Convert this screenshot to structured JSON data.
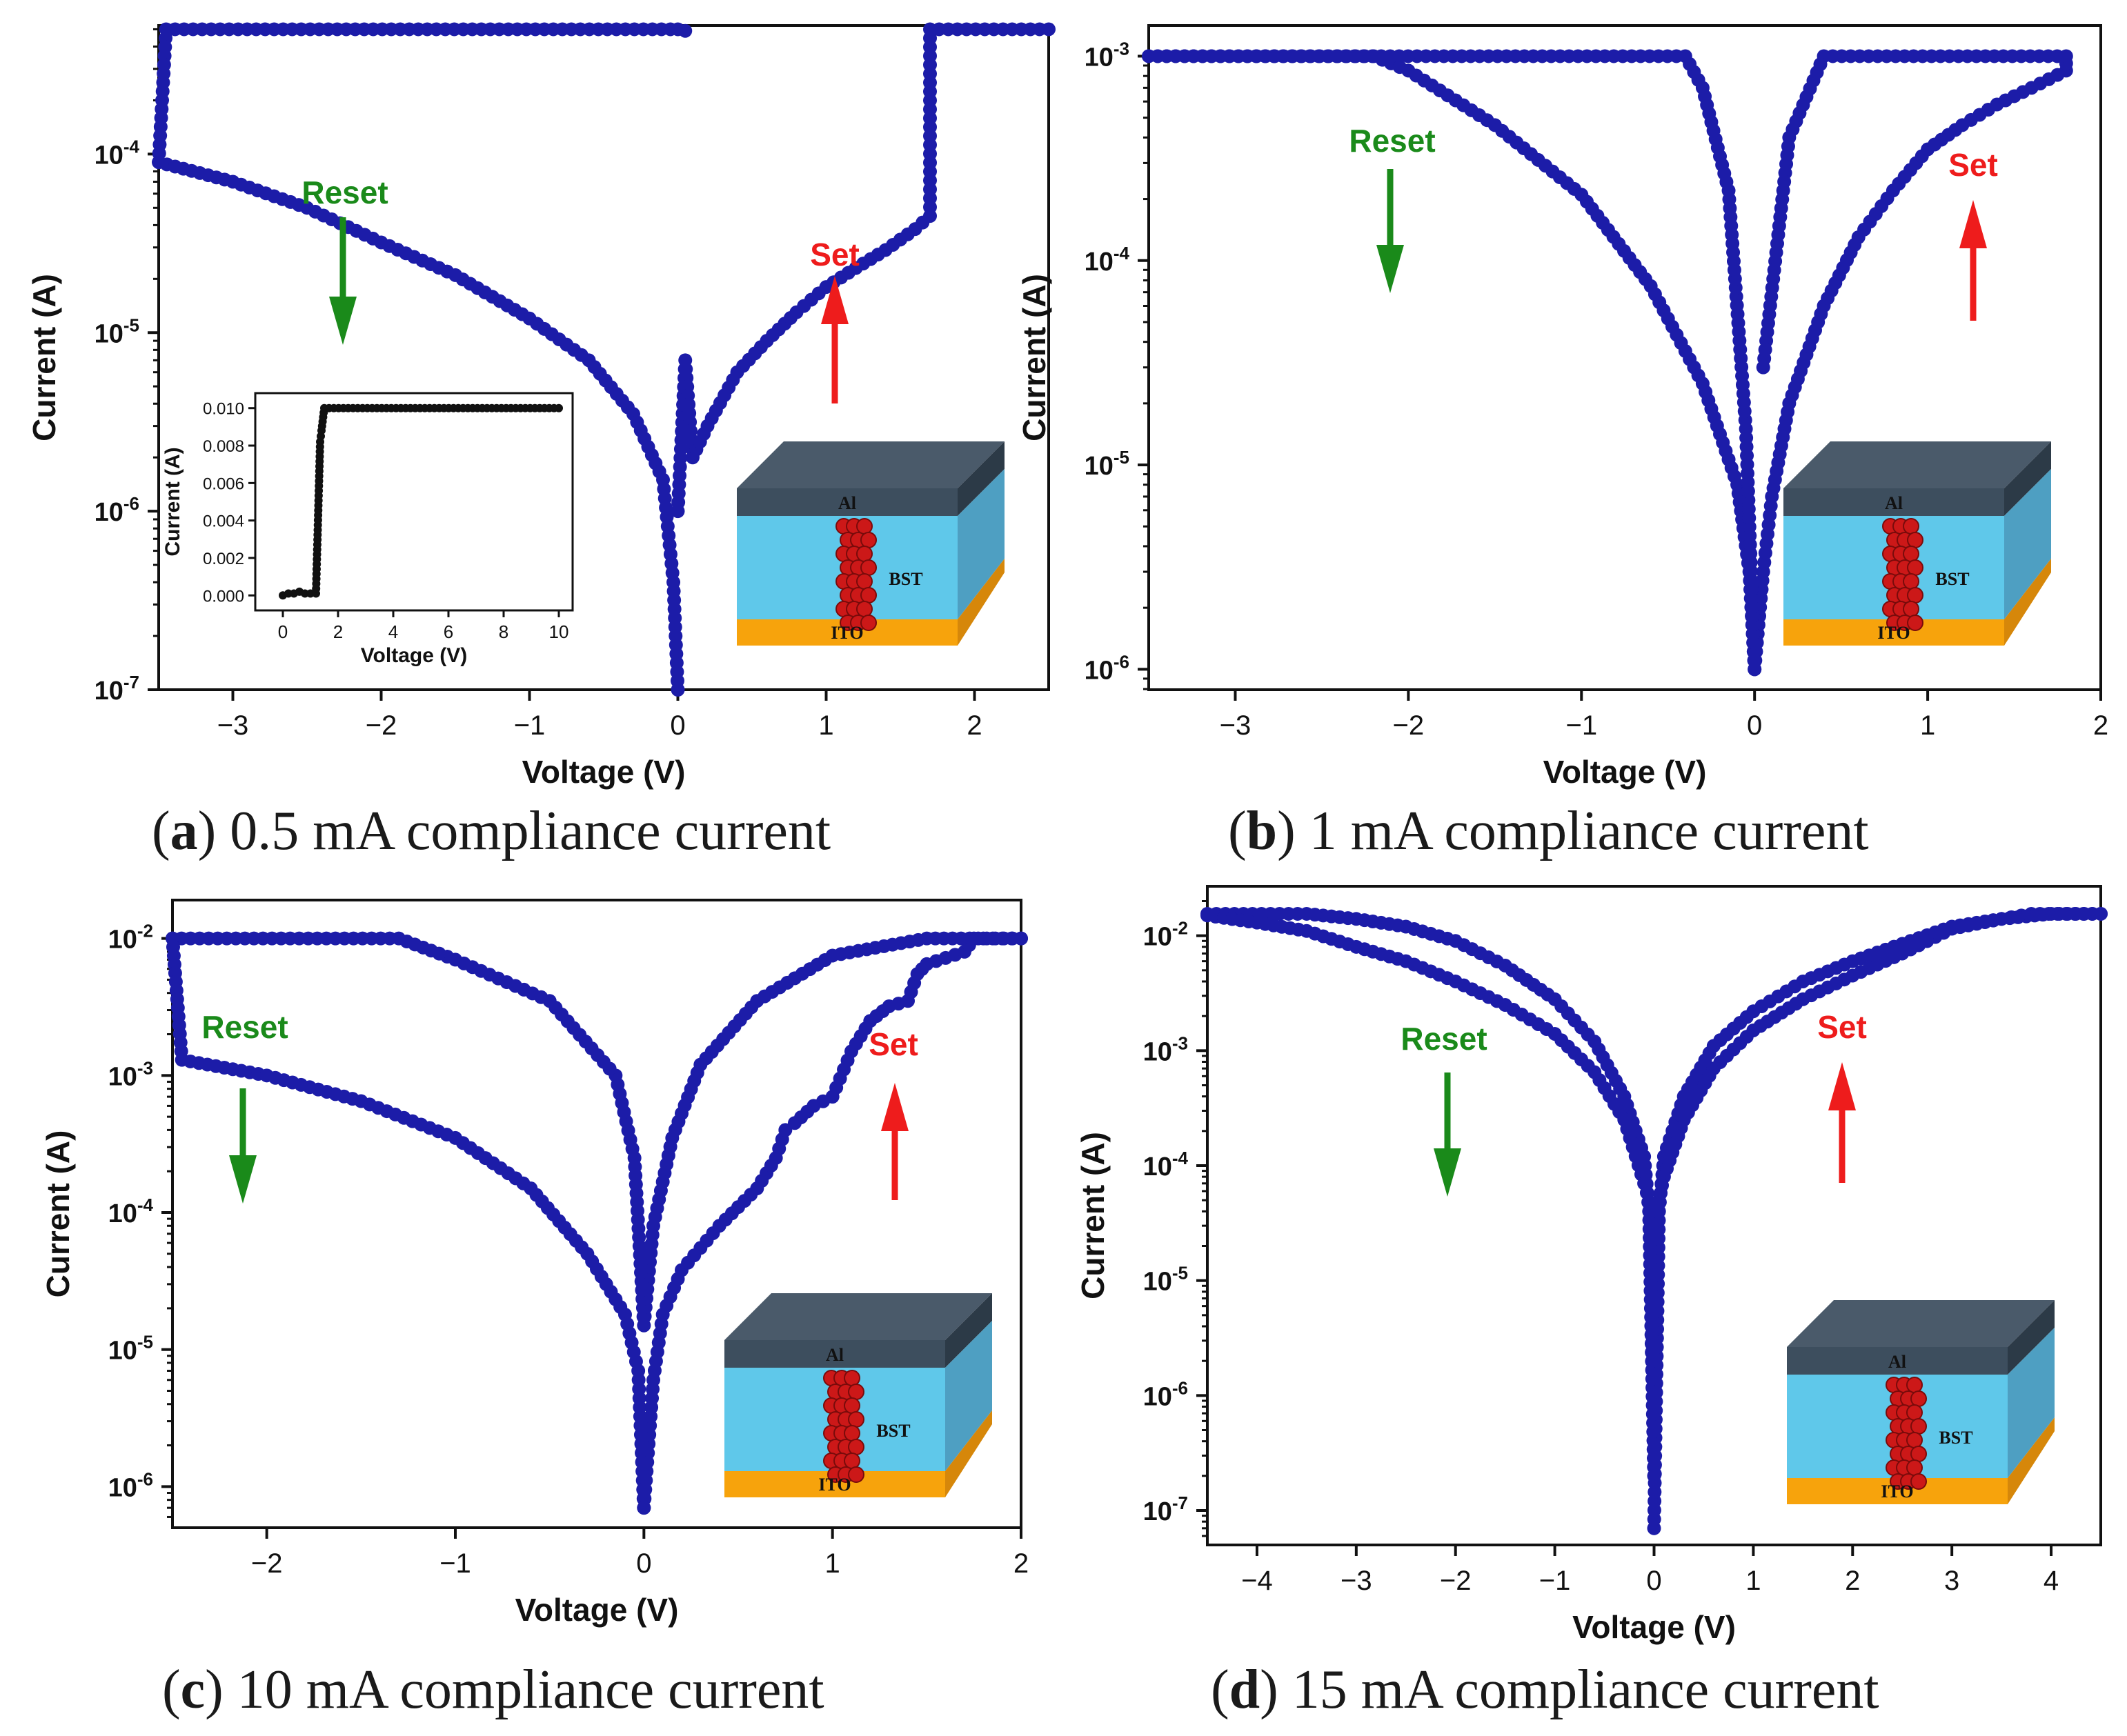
{
  "figure": {
    "point_color": "#1c1ca8",
    "line_color": "#2a2ab8",
    "reset_color": "#1a8a1a",
    "set_color": "#ee1c1c",
    "device_labels": {
      "top": "Al",
      "middle": "BST",
      "bottom": "ITO"
    },
    "device_colors": {
      "al": "#4a5a6a",
      "bst": "#5fc8ea",
      "ito": "#f7a30c",
      "filament": "#cc1818"
    }
  },
  "chart_data": [
    {
      "id": "a",
      "type": "scatter",
      "caption_letter": "a",
      "caption_text": ") 0.5 mA compliance current",
      "xlabel": "Voltage (V)",
      "ylabel": "Current (A)",
      "xlim": [
        -3.5,
        2.5
      ],
      "ylim_exp": [
        -7,
        -3.28
      ],
      "xticks": [
        -3,
        -2,
        -1,
        0,
        1,
        2
      ],
      "xtick_labels": [
        "−3",
        "−2",
        "−1",
        "0",
        "1",
        "2"
      ],
      "yticks_exp": [
        -7,
        -6,
        -5,
        -4
      ],
      "ytick_labels": [
        "10-7",
        "10-6",
        "10-5",
        "10-4"
      ],
      "annotations": {
        "reset": "Reset",
        "set": "Set"
      },
      "compliance": 0.0005,
      "series": [
        {
          "name": "set-branch",
          "points": [
            [
              0.0,
              1e-06
            ],
            [
              0.05,
              7e-06
            ],
            [
              0.1,
              2e-06
            ],
            [
              0.2,
              3e-06
            ],
            [
              0.4,
              6e-06
            ],
            [
              0.6,
              9e-06
            ],
            [
              0.8,
              1.3e-05
            ],
            [
              1.0,
              1.8e-05
            ],
            [
              1.2,
              2.3e-05
            ],
            [
              1.4,
              2.9e-05
            ],
            [
              1.6,
              3.8e-05
            ],
            [
              1.7,
              4.5e-05
            ],
            [
              1.7,
              0.0005
            ],
            [
              2.5,
              0.0005
            ]
          ]
        },
        {
          "name": "reset-branch",
          "points": [
            [
              0.05,
              0.00049
            ],
            [
              0.0,
              0.0005
            ],
            [
              -0.05,
              0.0005
            ],
            [
              -3.45,
              0.0005
            ],
            [
              -3.5,
              9e-05
            ],
            [
              -3.0,
              7e-05
            ],
            [
              -2.5,
              5e-05
            ],
            [
              -2.0,
              3.2e-05
            ],
            [
              -1.5,
              2.1e-05
            ],
            [
              -1.0,
              1.2e-05
            ],
            [
              -0.6,
              7e-06
            ],
            [
              -0.3,
              3.5e-06
            ],
            [
              -0.1,
              1.5e-06
            ],
            [
              -0.03,
              4e-07
            ],
            [
              0.0,
              1e-07
            ]
          ]
        }
      ],
      "inset": {
        "xlabel": "Voltage (V)",
        "ylabel": "Current (A)",
        "xlim": [
          -1,
          10.5
        ],
        "ylim": [
          -0.0008,
          0.0108
        ],
        "xticks": [
          0,
          2,
          4,
          6,
          8,
          10
        ],
        "yticks": [
          0.0,
          0.002,
          0.004,
          0.006,
          0.008,
          0.01
        ],
        "ytick_labels": [
          "0.000",
          "0.002",
          "0.004",
          "0.006",
          "0.008",
          "0.010"
        ],
        "points": [
          [
            0.0,
            0.0
          ],
          [
            0.2,
            0.0001
          ],
          [
            0.4,
            0.0001
          ],
          [
            0.6,
            0.0002
          ],
          [
            0.8,
            0.0001
          ],
          [
            1.0,
            0.0001
          ],
          [
            1.2,
            0.0001
          ],
          [
            1.35,
            0.0082
          ],
          [
            1.4,
            0.0088
          ],
          [
            1.5,
            0.01
          ],
          [
            10.0,
            0.01
          ]
        ]
      }
    },
    {
      "id": "b",
      "type": "scatter",
      "caption_letter": "b",
      "caption_text": ") 1 mA compliance current",
      "xlabel": "Voltage (V)",
      "ylabel": "Current (A)",
      "xlim": [
        -3.5,
        2
      ],
      "ylim_exp": [
        -6.1,
        -2.85
      ],
      "xticks": [
        -3,
        -2,
        -1,
        0,
        1,
        2
      ],
      "xtick_labels": [
        "−3",
        "−2",
        "−1",
        "0",
        "1",
        "2"
      ],
      "yticks_exp": [
        -6,
        -5,
        -4,
        -3
      ],
      "ytick_labels": [
        "10-6",
        "10-5",
        "10-4",
        "10-3"
      ],
      "annotations": {
        "reset": "Reset",
        "set": "Set"
      },
      "compliance": 0.001,
      "series": [
        {
          "name": "set-branch",
          "points": [
            [
              0.0,
              1e-06
            ],
            [
              0.05,
              3e-06
            ],
            [
              0.1,
              7e-06
            ],
            [
              0.2,
              2e-05
            ],
            [
              0.4,
              6e-05
            ],
            [
              0.6,
              0.00013
            ],
            [
              0.8,
              0.00022
            ],
            [
              1.0,
              0.00035
            ],
            [
              1.2,
              0.00046
            ],
            [
              1.4,
              0.00058
            ],
            [
              1.6,
              0.0007
            ],
            [
              1.8,
              0.00085
            ],
            [
              1.8,
              0.001
            ],
            [
              0.4,
              0.001
            ],
            [
              0.2,
              0.0004
            ],
            [
              0.05,
              3e-05
            ]
          ]
        },
        {
          "name": "reset-branch",
          "points": [
            [
              -3.5,
              0.001
            ],
            [
              -2.2,
              0.001
            ],
            [
              -2.0,
              0.00085
            ],
            [
              -1.5,
              0.00046
            ],
            [
              -1.0,
              0.00021
            ],
            [
              -0.6,
              7.5e-05
            ],
            [
              -0.3,
              2.5e-05
            ],
            [
              -0.1,
              8e-06
            ],
            [
              -0.03,
              3e-06
            ],
            [
              0.0,
              1e-06
            ],
            [
              -0.05,
              1.5e-05
            ],
            [
              -0.15,
              0.00022
            ],
            [
              -0.3,
              0.0007
            ],
            [
              -0.4,
              0.001
            ],
            [
              -3.5,
              0.001
            ]
          ]
        }
      ]
    },
    {
      "id": "c",
      "type": "scatter",
      "caption_letter": "c",
      "caption_text": ") 10 mA compliance current",
      "xlabel": "Voltage (V)",
      "ylabel": "Current (A)",
      "xlim": [
        -2.5,
        2
      ],
      "ylim_exp": [
        -6.3,
        -1.72
      ],
      "xticks": [
        -2,
        -1,
        0,
        1,
        2
      ],
      "xtick_labels": [
        "−2",
        "−1",
        "0",
        "1",
        "2"
      ],
      "yticks_exp": [
        -6,
        -5,
        -4,
        -3,
        -2
      ],
      "ytick_labels": [
        "10-6",
        "10-5",
        "10-4",
        "10-3",
        "10-2"
      ],
      "annotations": {
        "reset": "Reset",
        "set": "Set"
      },
      "compliance": 0.01,
      "series": [
        {
          "name": "set-branch",
          "points": [
            [
              0.0,
              7e-07
            ],
            [
              0.05,
              6e-06
            ],
            [
              0.1,
              1.8e-05
            ],
            [
              0.2,
              3.8e-05
            ],
            [
              0.4,
              8e-05
            ],
            [
              0.6,
              0.00015
            ],
            [
              0.7,
              0.00025
            ],
            [
              0.75,
              0.0004
            ],
            [
              0.8,
              0.00045
            ],
            [
              0.9,
              0.0006
            ],
            [
              1.0,
              0.0007
            ],
            [
              1.1,
              0.0015
            ],
            [
              1.2,
              0.0025
            ],
            [
              1.3,
              0.0032
            ],
            [
              1.4,
              0.0035
            ],
            [
              1.45,
              0.0055
            ],
            [
              1.5,
              0.0065
            ],
            [
              1.7,
              0.008
            ],
            [
              1.75,
              0.01
            ],
            [
              2.0,
              0.01
            ]
          ]
        },
        {
          "name": "return-branch",
          "points": [
            [
              2.0,
              0.01
            ],
            [
              1.5,
              0.01
            ],
            [
              1.0,
              0.0075
            ],
            [
              0.6,
              0.0035
            ],
            [
              0.3,
              0.0012
            ],
            [
              0.15,
              0.00035
            ],
            [
              0.05,
              8e-05
            ],
            [
              0.0,
              1.5e-05
            ],
            [
              -0.05,
              0.00025
            ],
            [
              -0.15,
              0.001
            ],
            [
              -0.5,
              0.0035
            ],
            [
              -1.0,
              0.007
            ],
            [
              -1.3,
              0.01
            ],
            [
              -2.5,
              0.01
            ]
          ]
        },
        {
          "name": "reset-branch",
          "points": [
            [
              -2.5,
              0.01
            ],
            [
              -2.45,
              0.0013
            ],
            [
              -2.0,
              0.001
            ],
            [
              -1.5,
              0.00065
            ],
            [
              -1.0,
              0.00035
            ],
            [
              -0.6,
              0.00015
            ],
            [
              -0.3,
              5e-05
            ],
            [
              -0.1,
              1.8e-05
            ],
            [
              -0.03,
              7e-06
            ],
            [
              0.0,
              7e-07
            ]
          ]
        }
      ]
    },
    {
      "id": "d",
      "type": "scatter",
      "caption_letter": "d",
      "caption_text": ") 15 mA compliance current",
      "xlabel": "Voltage (V)",
      "ylabel": "Current (A)",
      "xlim": [
        -4.5,
        4.5
      ],
      "ylim_exp": [
        -7.3,
        -1.57
      ],
      "xticks": [
        -4,
        -3,
        -2,
        -1,
        0,
        1,
        2,
        3,
        4
      ],
      "xtick_labels": [
        "−4",
        "−3",
        "−2",
        "−1",
        "0",
        "1",
        "2",
        "3",
        "4"
      ],
      "yticks_exp": [
        -7,
        -6,
        -5,
        -4,
        -3,
        -2
      ],
      "ytick_labels": [
        "10-7",
        "10-6",
        "10-5",
        "10-4",
        "10-3",
        "10-2"
      ],
      "annotations": {
        "reset": "Reset",
        "set": "Set"
      },
      "compliance": 0.015,
      "series": [
        {
          "name": "positive-outer",
          "points": [
            [
              0.0,
              7e-08
            ],
            [
              0.05,
              4e-05
            ],
            [
              0.1,
              0.00012
            ],
            [
              0.3,
              0.0004
            ],
            [
              0.6,
              0.0011
            ],
            [
              1.0,
              0.0022
            ],
            [
              1.5,
              0.004
            ],
            [
              2.0,
              0.006
            ],
            [
              2.5,
              0.0085
            ],
            [
              3.0,
              0.012
            ],
            [
              3.5,
              0.014
            ],
            [
              3.8,
              0.0155
            ],
            [
              4.5,
              0.0155
            ]
          ]
        },
        {
          "name": "positive-inner",
          "points": [
            [
              4.5,
              0.0155
            ],
            [
              4.0,
              0.0155
            ],
            [
              3.5,
              0.014
            ],
            [
              3.0,
              0.0115
            ],
            [
              2.5,
              0.007
            ],
            [
              2.0,
              0.0045
            ],
            [
              1.5,
              0.0028
            ],
            [
              1.0,
              0.0015
            ],
            [
              0.6,
              0.0007
            ],
            [
              0.3,
              0.00025
            ],
            [
              0.1,
              8e-05
            ],
            [
              0.02,
              4e-05
            ]
          ]
        },
        {
          "name": "negative-outer",
          "points": [
            [
              0.0,
              2e-07
            ],
            [
              -0.05,
              4e-05
            ],
            [
              -0.1,
              0.00012
            ],
            [
              -0.3,
              0.0004
            ],
            [
              -0.6,
              0.0012
            ],
            [
              -1.0,
              0.0028
            ],
            [
              -1.5,
              0.0055
            ],
            [
              -2.0,
              0.009
            ],
            [
              -2.5,
              0.012
            ],
            [
              -3.0,
              0.014
            ],
            [
              -3.5,
              0.0155
            ],
            [
              -4.5,
              0.0155
            ]
          ]
        },
        {
          "name": "negative-inner",
          "points": [
            [
              -4.5,
              0.015
            ],
            [
              -4.0,
              0.013
            ],
            [
              -3.5,
              0.011
            ],
            [
              -3.0,
              0.008
            ],
            [
              -2.5,
              0.006
            ],
            [
              -2.0,
              0.004
            ],
            [
              -1.5,
              0.0025
            ],
            [
              -1.0,
              0.0014
            ],
            [
              -0.6,
              0.00065
            ],
            [
              -0.3,
              0.00025
            ],
            [
              -0.1,
              7e-05
            ],
            [
              -0.02,
              4e-05
            ]
          ]
        }
      ]
    }
  ]
}
